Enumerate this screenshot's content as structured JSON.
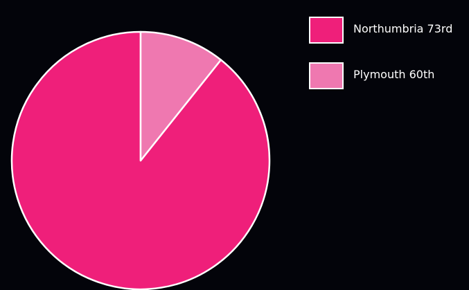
{
  "chart_data": {
    "type": "pie",
    "title": "",
    "slices": [
      {
        "label": "Northumbria 73rd",
        "value": 89.3,
        "color": "#ef1f7a"
      },
      {
        "label": "Plymouth 60th",
        "value": 10.7,
        "color": "#ef78b0"
      }
    ],
    "start_angle_deg": 0,
    "direction": "counterclockwise",
    "border_color": "#ffffff",
    "legend": {
      "placement": "top-right"
    }
  }
}
